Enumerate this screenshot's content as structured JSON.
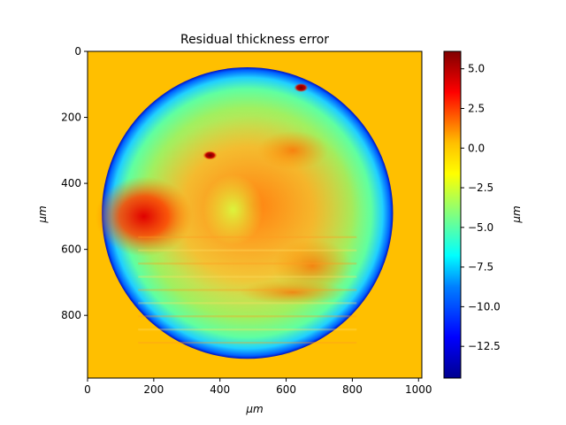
{
  "chart_data": {
    "type": "heatmap",
    "title": "Residual thickness error",
    "xlabel": "μm",
    "ylabel": "μm",
    "colorbar_label": "μm",
    "colormap": "jet",
    "background_color": "#ffbf00",
    "xlim": [
      0,
      1010
    ],
    "ylim": [
      990,
      0
    ],
    "x_ticks": [
      0,
      200,
      400,
      600,
      800,
      1000
    ],
    "y_ticks": [
      0,
      200,
      400,
      600,
      800
    ],
    "x_tick_labels": [
      "0",
      "200",
      "400",
      "600",
      "800",
      "1000"
    ],
    "y_tick_labels": [
      "0",
      "200",
      "400",
      "600",
      "800"
    ],
    "colorbar_range": [
      -14.5,
      6.1
    ],
    "colorbar_ticks": [
      5.0,
      2.5,
      0.0,
      -2.5,
      -5.0,
      -7.5,
      -10.0,
      -12.5
    ],
    "colorbar_tick_labels": [
      "5.0",
      "2.5",
      "0.0",
      "−2.5",
      "−5.0",
      "−7.5",
      "−10.0",
      "−12.5"
    ],
    "circle": {
      "center_x": 483,
      "center_y": 490,
      "radius": 440
    },
    "features": [
      {
        "name": "left hot region",
        "x": 170,
        "y": 500,
        "value": 4.5
      },
      {
        "name": "top-center hot spot",
        "x": 370,
        "y": 315,
        "value": 5.0
      },
      {
        "name": "top-right hot spot",
        "x": 645,
        "y": 110,
        "value": 3.5
      },
      {
        "name": "edge ring",
        "value": -12.0
      }
    ]
  }
}
